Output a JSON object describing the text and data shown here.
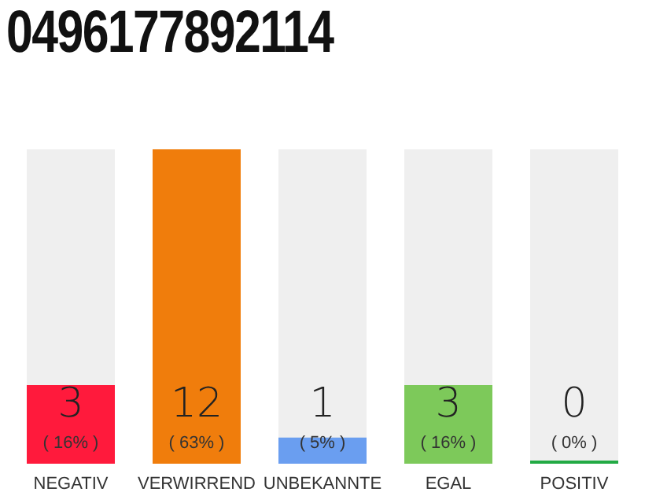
{
  "chart_data": {
    "type": "bar",
    "title": "0496177892114",
    "categories": [
      "NEGATIV",
      "VERWIRREND",
      "UNBEKANNTE",
      "EGAL",
      "POSITIV"
    ],
    "values": [
      3,
      12,
      1,
      3,
      0
    ],
    "colors": [
      "#ff1a3c",
      "#f07d0c",
      "#6a9ef0",
      "#7dc95a",
      "#22aa44"
    ],
    "data_labels": true,
    "annotations": [
      "( 16% )",
      "( 63% )",
      "( 5% )",
      "( 16% )",
      "( 0% )"
    ],
    "grid": false,
    "legend": false
  }
}
